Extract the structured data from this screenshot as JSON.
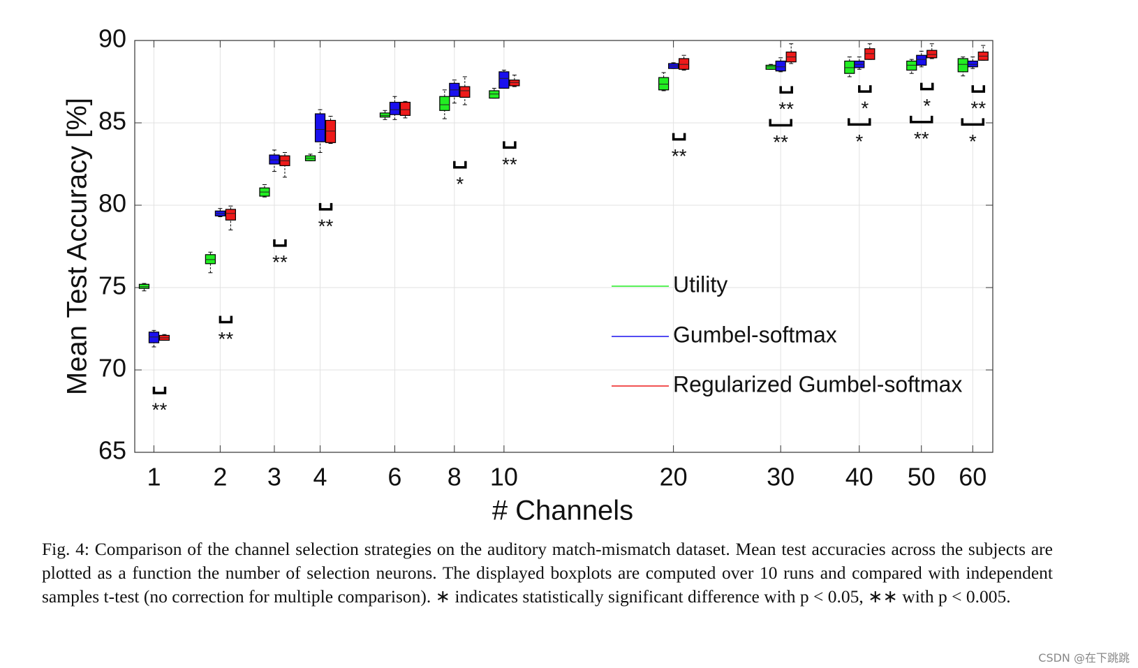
{
  "chart_data": {
    "type": "boxplot",
    "xlabel": "# Channels",
    "ylabel": "Mean Test Accuracy [%]",
    "x": [
      1,
      2,
      3,
      4,
      6,
      8,
      10,
      20,
      30,
      40,
      50,
      60
    ],
    "xlim": [
      0.75,
      64.4
    ],
    "xticks": [
      1,
      2,
      3,
      4,
      6,
      8,
      10,
      20,
      30,
      40,
      50,
      60
    ],
    "ylim": [
      65,
      90
    ],
    "yticks": [
      65,
      70,
      75,
      80,
      85,
      90
    ],
    "grid": true,
    "legend": "center right",
    "series": [
      {
        "name": "Utility",
        "color": "#22ee22",
        "values": [
          {
            "min": 74.8,
            "q1": 74.95,
            "median": 75.05,
            "q3": 75.2,
            "max": 75.25
          },
          {
            "min": 75.9,
            "q1": 76.45,
            "median": 76.7,
            "q3": 77.0,
            "max": 77.15
          },
          {
            "min": 80.5,
            "q1": 80.55,
            "median": 80.8,
            "q3": 81.05,
            "max": 81.25
          },
          {
            "min": 82.7,
            "q1": 82.7,
            "median": 82.85,
            "q3": 83.0,
            "max": 83.1
          },
          {
            "min": 85.2,
            "q1": 85.35,
            "median": 85.45,
            "q3": 85.6,
            "max": 85.75
          },
          {
            "min": 85.25,
            "q1": 85.75,
            "median": 86.1,
            "q3": 86.6,
            "max": 87.0
          },
          {
            "min": 86.5,
            "q1": 86.5,
            "median": 86.75,
            "q3": 86.95,
            "max": 87.1
          },
          {
            "min": 86.95,
            "q1": 87.0,
            "median": 87.35,
            "q3": 87.75,
            "max": 88.05
          },
          {
            "min": 88.25,
            "q1": 88.25,
            "median": 88.4,
            "q3": 88.5,
            "max": 88.55
          },
          {
            "min": 87.8,
            "q1": 88.0,
            "median": 88.35,
            "q3": 88.75,
            "max": 89.0
          },
          {
            "min": 88.0,
            "q1": 88.2,
            "median": 88.5,
            "q3": 88.75,
            "max": 88.85
          },
          {
            "min": 87.85,
            "q1": 88.1,
            "median": 88.55,
            "q3": 88.9,
            "max": 89.0
          }
        ]
      },
      {
        "name": "Gumbel-softmax",
        "color": "#1a10ee",
        "values": [
          {
            "min": 71.4,
            "q1": 71.65,
            "median": 72.0,
            "q3": 72.3,
            "max": 72.4
          },
          {
            "min": 79.3,
            "q1": 79.35,
            "median": 79.5,
            "q3": 79.65,
            "max": 79.8
          },
          {
            "min": 82.05,
            "q1": 82.5,
            "median": 82.75,
            "q3": 83.05,
            "max": 83.35
          },
          {
            "min": 83.2,
            "q1": 83.85,
            "median": 84.6,
            "q3": 85.55,
            "max": 85.8
          },
          {
            "min": 85.2,
            "q1": 85.5,
            "median": 85.8,
            "q3": 86.25,
            "max": 86.6
          },
          {
            "min": 86.2,
            "q1": 86.6,
            "median": 87.0,
            "q3": 87.4,
            "max": 87.6
          },
          {
            "min": 87.1,
            "q1": 87.1,
            "median": 87.7,
            "q3": 88.1,
            "max": 88.2
          },
          {
            "min": 88.3,
            "q1": 88.3,
            "median": 88.45,
            "q3": 88.6,
            "max": 88.65
          },
          {
            "min": 88.1,
            "q1": 88.15,
            "median": 88.4,
            "q3": 88.75,
            "max": 88.95
          },
          {
            "min": 88.25,
            "q1": 88.35,
            "median": 88.55,
            "q3": 88.75,
            "max": 89.0
          },
          {
            "min": 88.4,
            "q1": 88.5,
            "median": 88.85,
            "q3": 89.1,
            "max": 89.35
          },
          {
            "min": 88.3,
            "q1": 88.4,
            "median": 88.55,
            "q3": 88.75,
            "max": 89.0
          }
        ]
      },
      {
        "name": "Regularized Gumbel-softmax",
        "color": "#ee1a1a",
        "values": [
          {
            "min": 71.8,
            "q1": 71.8,
            "median": 71.95,
            "q3": 72.1,
            "max": 72.15
          },
          {
            "min": 78.5,
            "q1": 79.1,
            "median": 79.5,
            "q3": 79.75,
            "max": 79.95
          },
          {
            "min": 81.7,
            "q1": 82.4,
            "median": 82.7,
            "q3": 83.0,
            "max": 83.2
          },
          {
            "min": 83.75,
            "q1": 83.8,
            "median": 84.5,
            "q3": 85.15,
            "max": 85.4
          },
          {
            "min": 85.3,
            "q1": 85.45,
            "median": 85.8,
            "q3": 86.25,
            "max": 86.3
          },
          {
            "min": 86.1,
            "q1": 86.55,
            "median": 86.95,
            "q3": 87.2,
            "max": 87.8
          },
          {
            "min": 87.2,
            "q1": 87.25,
            "median": 87.45,
            "q3": 87.6,
            "max": 87.9
          },
          {
            "min": 88.2,
            "q1": 88.25,
            "median": 88.55,
            "q3": 88.9,
            "max": 89.1
          },
          {
            "min": 88.6,
            "q1": 88.7,
            "median": 89.0,
            "q3": 89.3,
            "max": 89.8
          },
          {
            "min": 88.85,
            "q1": 88.85,
            "median": 89.2,
            "q3": 89.5,
            "max": 89.8
          },
          {
            "min": 88.9,
            "q1": 88.95,
            "median": 89.15,
            "q3": 89.4,
            "max": 89.8
          },
          {
            "min": 88.8,
            "q1": 88.8,
            "median": 89.05,
            "q3": 89.3,
            "max": 89.7
          }
        ]
      }
    ],
    "annotations": [
      {
        "x": 1,
        "y": 68.6,
        "label": "**"
      },
      {
        "x": 2,
        "y": 72.9,
        "label": "**"
      },
      {
        "x": 3,
        "y": 77.55,
        "label": "**"
      },
      {
        "x": 4,
        "y": 79.75,
        "label": "**"
      },
      {
        "x": 8,
        "y": 82.3,
        "label": "*"
      },
      {
        "x": 10,
        "y": 83.5,
        "label": "**"
      },
      {
        "x": 20,
        "y": 84.0,
        "label": "**"
      },
      {
        "x": 30,
        "y": 86.85,
        "label": "**"
      },
      {
        "x": 30,
        "y": 84.85,
        "label": "**"
      },
      {
        "x": 40,
        "y": 86.9,
        "label": "*"
      },
      {
        "x": 40,
        "y": 84.9,
        "label": "*"
      },
      {
        "x": 50,
        "y": 87.05,
        "label": "*"
      },
      {
        "x": 50,
        "y": 85.05,
        "label": "**"
      },
      {
        "x": 60,
        "y": 86.9,
        "label": "**"
      },
      {
        "x": 60,
        "y": 84.9,
        "label": "*"
      }
    ]
  },
  "caption": "Fig. 4: Comparison of the channel selection strategies on the auditory match-mismatch dataset. Mean test accuracies across the subjects are plotted as a function the number of selection neurons. The displayed boxplots are computed over 10 runs and compared with independent samples t-test (no correction for multiple comparison). ∗ indicates statistically significant difference with p < 0.05, ∗∗ with p < 0.005.",
  "watermark": "CSDN @在下跳跳"
}
